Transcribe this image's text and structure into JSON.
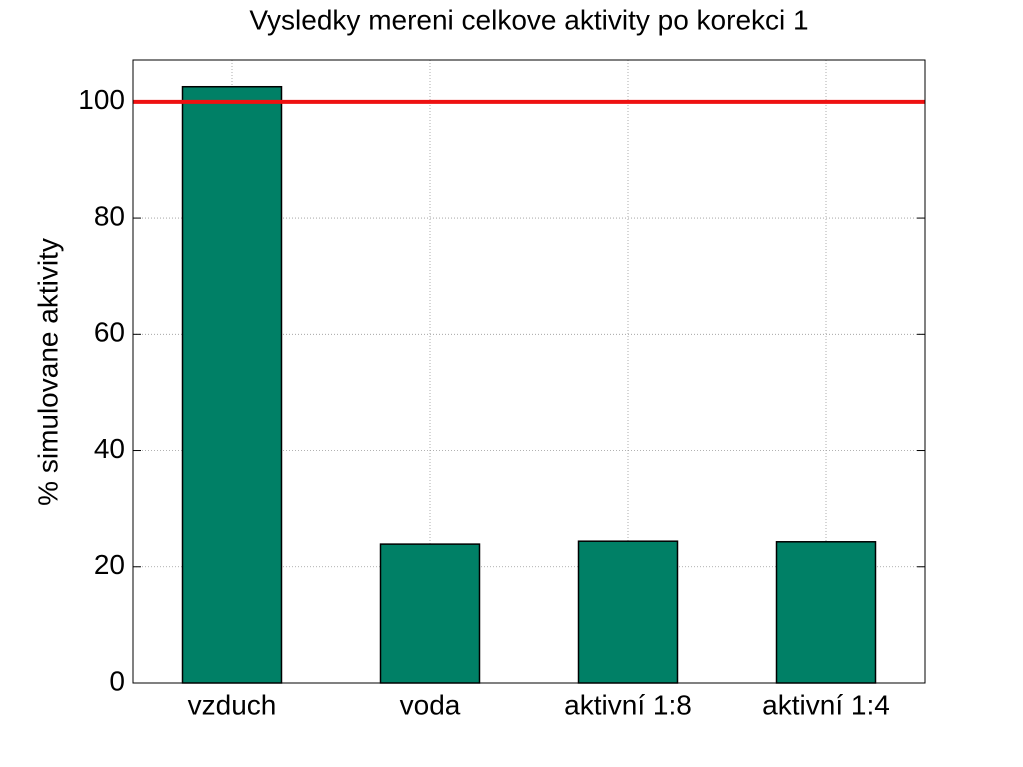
{
  "chart_data": {
    "type": "bar",
    "title": "Vysledky mereni celkove aktivity po korekci 1",
    "ylabel": "% simulovane aktivity",
    "categories": [
      "vzduch",
      "voda",
      "aktivní 1:8",
      "aktivní 1:4"
    ],
    "values": [
      102.6,
      23.9,
      24.4,
      24.3
    ],
    "color": "#008066",
    "ylim": [
      0,
      107.2
    ],
    "yticks": [
      0,
      20,
      40,
      60,
      80,
      100
    ],
    "grid": true,
    "reference_line": {
      "value": 100,
      "color": "#ee1111"
    }
  }
}
